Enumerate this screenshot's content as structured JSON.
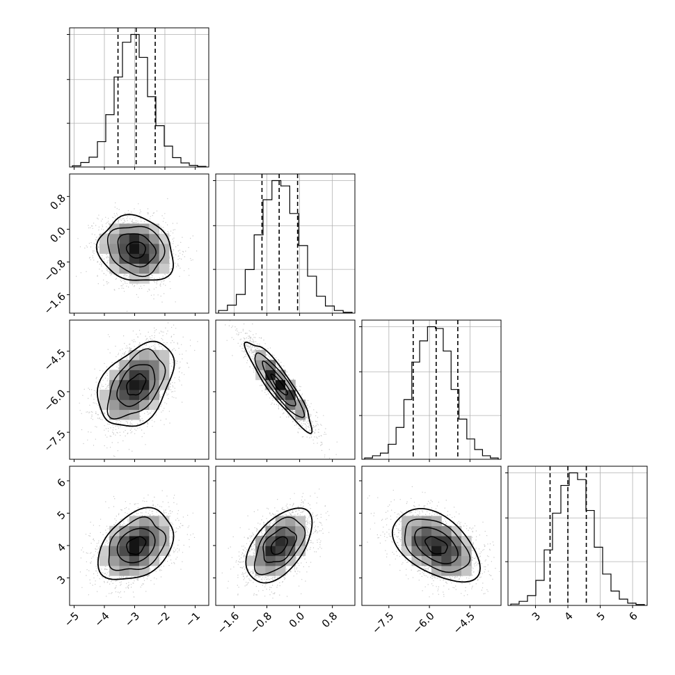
{
  "chart_data": {
    "type": "corner",
    "title": "",
    "grid": true,
    "parameters": [
      {
        "range": [
          -5.15,
          -0.55
        ],
        "ticks": [
          "-5",
          "-4",
          "-3",
          "-2",
          "-1"
        ],
        "quantiles": [
          -3.55,
          -2.95,
          -2.32
        ],
        "hist": [
          0.3,
          1.1,
          2.4,
          6.2,
          12.8,
          22.0,
          30.5,
          32.4,
          26.8,
          17.2,
          10.1,
          5.1,
          2.3,
          1.0,
          0.4,
          0.15
        ]
      },
      {
        "range": [
          -2.05,
          1.35
        ],
        "ticks": [
          "-1.6",
          "-0.8",
          "0.0",
          "0.8"
        ],
        "ticks_y": [
          "-1.6",
          "-0.8",
          "0.0",
          "0.8"
        ],
        "quantiles": [
          -0.92,
          -0.5,
          -0.05
        ],
        "hist": [
          0.6,
          1.8,
          4.2,
          9.8,
          17.6,
          25.5,
          29.8,
          28.6,
          22.4,
          15.2,
          8.3,
          3.8,
          1.6,
          0.6,
          0.2
        ]
      },
      {
        "range": [
          -8.5,
          -3.35
        ],
        "ticks": [
          "-7.5",
          "-6.0",
          "-4.5"
        ],
        "ticks_y": [
          "-7.5",
          "-6.0",
          "-4.5"
        ],
        "quantiles": [
          -6.6,
          -5.75,
          -4.95
        ],
        "hist": [
          0.3,
          0.8,
          1.4,
          3.4,
          7.2,
          13.5,
          22.0,
          26.8,
          30.0,
          29.6,
          24.5,
          15.8,
          9.1,
          4.6,
          2.2,
          0.8,
          0.3
        ]
      },
      {
        "range": [
          2.15,
          6.45
        ],
        "ticks": [
          "3",
          "4",
          "5",
          "6"
        ],
        "ticks_y": [
          "3",
          "4",
          "5",
          "6"
        ],
        "quantiles": [
          3.45,
          4.0,
          4.57
        ],
        "hist": [
          0.3,
          0.9,
          2.2,
          5.6,
          12.4,
          20.6,
          26.8,
          29.6,
          28.1,
          21.2,
          13.0,
          7.0,
          3.2,
          1.4,
          0.5,
          0.2
        ]
      }
    ],
    "pairs": [
      {
        "x": 0,
        "y": 1,
        "mean": [
          -2.95,
          -0.5
        ],
        "sd": [
          0.62,
          0.4
        ],
        "rho": -0.15
      },
      {
        "x": 0,
        "y": 2,
        "mean": [
          -2.95,
          -5.75
        ],
        "sd": [
          0.62,
          0.8
        ],
        "rho": 0.45
      },
      {
        "x": 1,
        "y": 2,
        "mean": [
          -0.5,
          -5.75
        ],
        "sd": [
          0.4,
          0.8
        ],
        "rho": -0.9
      },
      {
        "x": 0,
        "y": 3,
        "mean": [
          -2.95,
          4.0
        ],
        "sd": [
          0.62,
          0.55
        ],
        "rho": 0.35
      },
      {
        "x": 1,
        "y": 3,
        "mean": [
          -0.5,
          4.0
        ],
        "sd": [
          0.4,
          0.55
        ],
        "rho": 0.45
      },
      {
        "x": 2,
        "y": 3,
        "mean": [
          -5.75,
          4.0
        ],
        "sd": [
          0.8,
          0.55
        ],
        "rho": -0.45
      }
    ]
  }
}
